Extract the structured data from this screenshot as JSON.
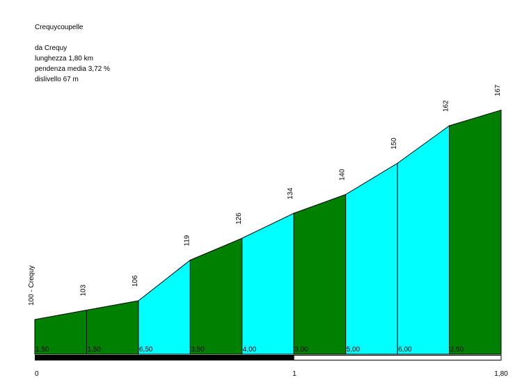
{
  "header": {
    "title": "Crequycoupelle",
    "start": "da Crequy",
    "length": "lunghezza 1,80 km",
    "gradient": "pendenza media 3,72 %",
    "climb": "dislivello 67 m"
  },
  "chart_data": {
    "type": "area",
    "x": [
      0,
      0.2,
      0.4,
      0.6,
      0.8,
      1.0,
      1.2,
      1.4,
      1.6,
      1.8
    ],
    "elevation_labels": [
      "100 - Crequy",
      "103",
      "106",
      "119",
      "126",
      "134",
      "140",
      "150",
      "162",
      "167"
    ],
    "elevations": [
      100,
      103,
      106,
      119,
      126,
      134,
      140,
      150,
      162,
      167
    ],
    "segment_gradients": [
      "1,50",
      "1,50",
      "6,50",
      "3,50",
      "4,00",
      "3,00",
      "5,00",
      "6,00",
      "2,50"
    ],
    "segment_colors": [
      "green",
      "green",
      "cyan",
      "green",
      "cyan",
      "green",
      "cyan",
      "cyan",
      "green"
    ],
    "xtick_labels": [
      "0",
      "1",
      "1,80"
    ],
    "xticks": [
      0,
      1,
      1.8
    ],
    "xlim": [
      0,
      1.8
    ],
    "scale_bar": {
      "filled_until": 1,
      "end": 1.8
    },
    "colors": {
      "green": "#008000",
      "cyan": "#00ffff",
      "outline": "#000000"
    }
  }
}
